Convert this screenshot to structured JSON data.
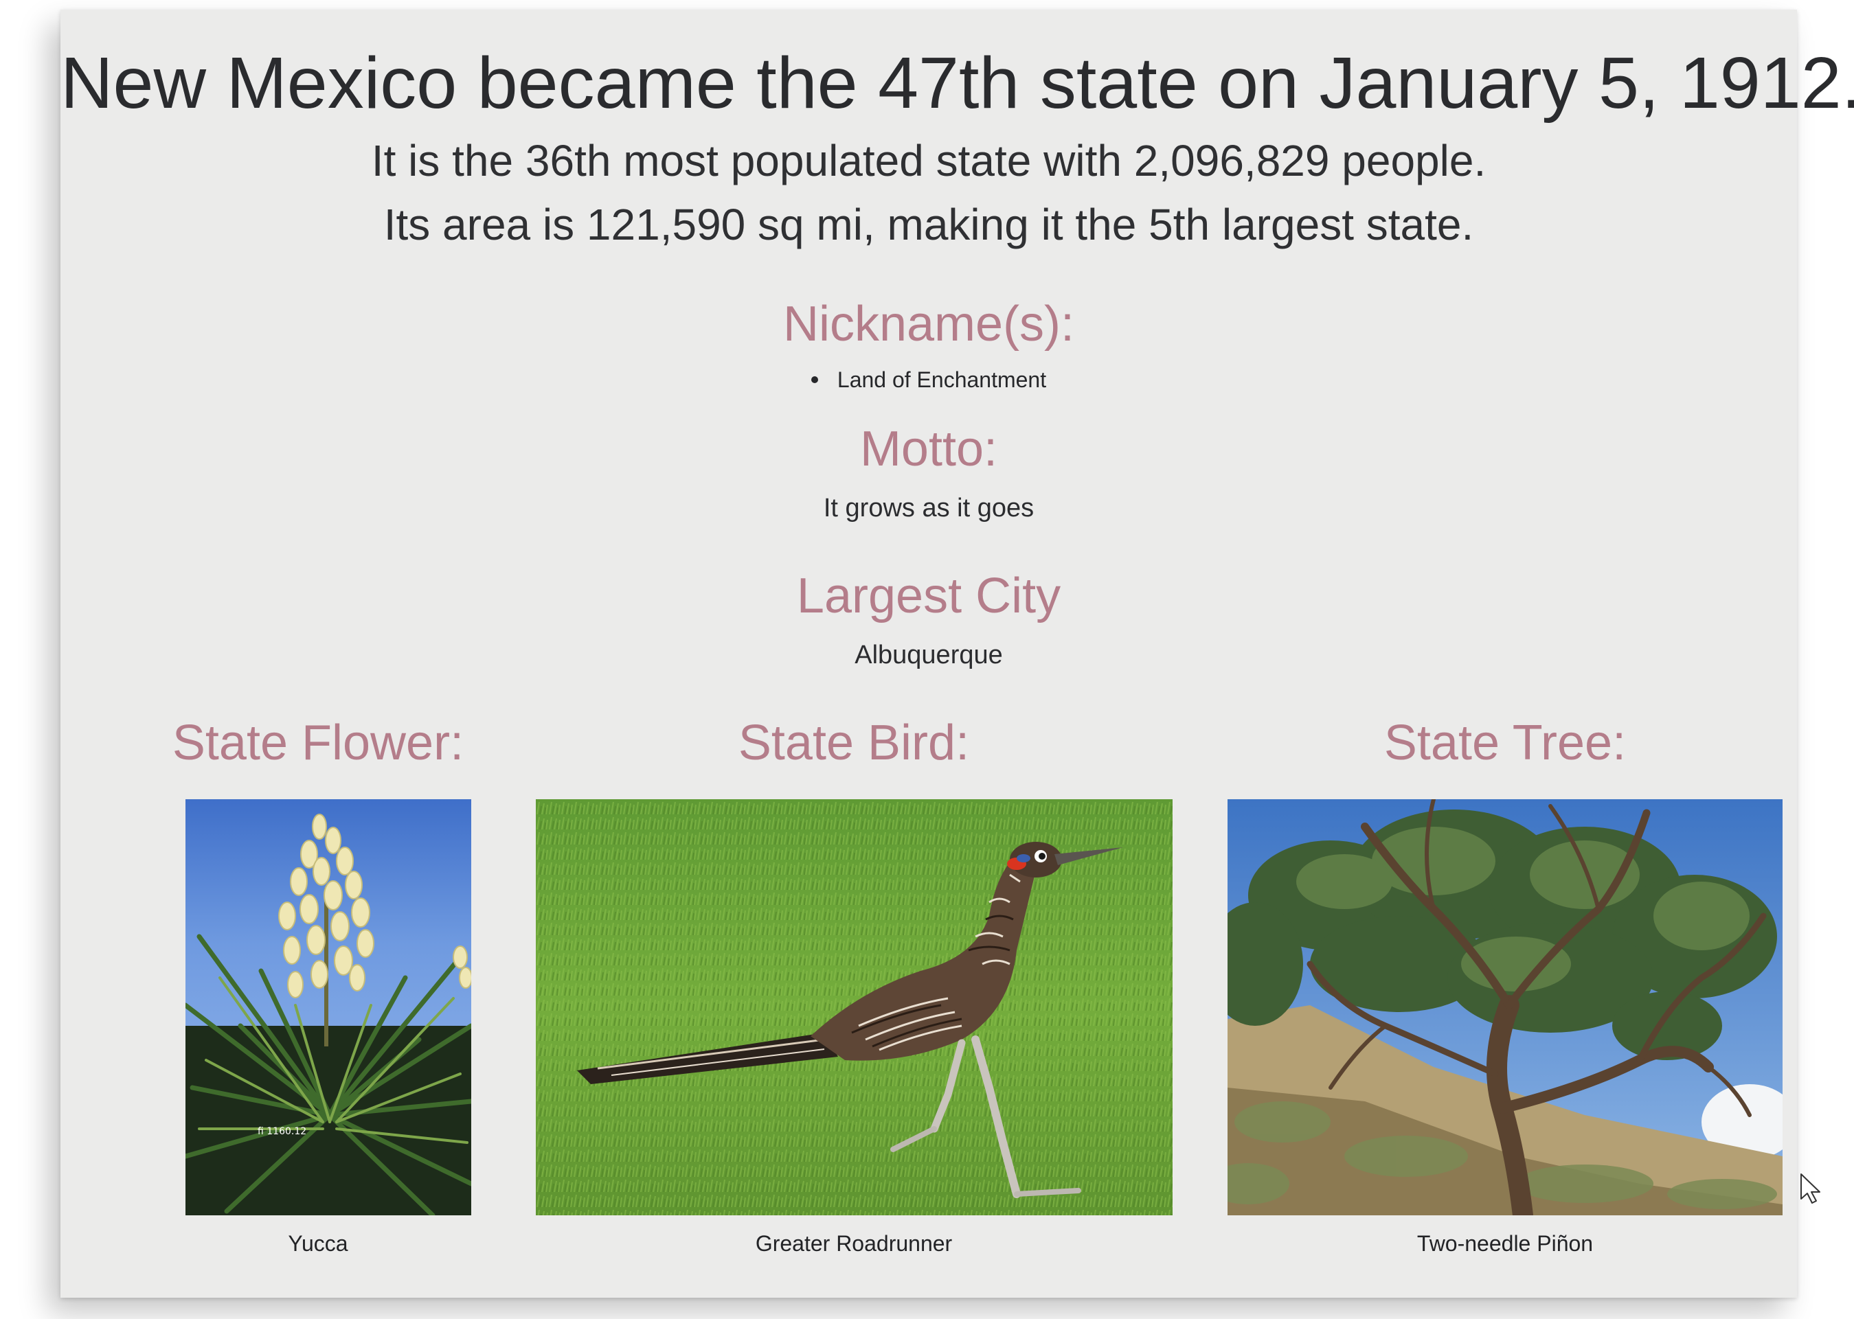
{
  "headline": {
    "state": "New Mexico",
    "rest": "became the 47th state on January 5, 1912."
  },
  "population_line": "It is the 36th most populated state with 2,096,829 people.",
  "area_line": "Its area is 121,590 sq mi, making it the 5th largest state.",
  "nicknames": {
    "heading": "Nickname(s):",
    "items": [
      "Land of Enchantment"
    ]
  },
  "motto": {
    "heading": "Motto:",
    "text": "It grows as it goes"
  },
  "largest_city": {
    "heading": "Largest City",
    "text": "Albuquerque"
  },
  "state_flower": {
    "heading": "State Flower:",
    "caption": "Yucca",
    "photo_label": "fi 1160.12"
  },
  "state_bird": {
    "heading": "State Bird:",
    "caption": "Greater Roadrunner"
  },
  "state_tree": {
    "heading": "State Tree:",
    "caption": "Two-needle Piñon"
  },
  "colors": {
    "card_background": "#ebebea",
    "heading_accent": "#b47d8a",
    "text": "#2a2b2e"
  }
}
